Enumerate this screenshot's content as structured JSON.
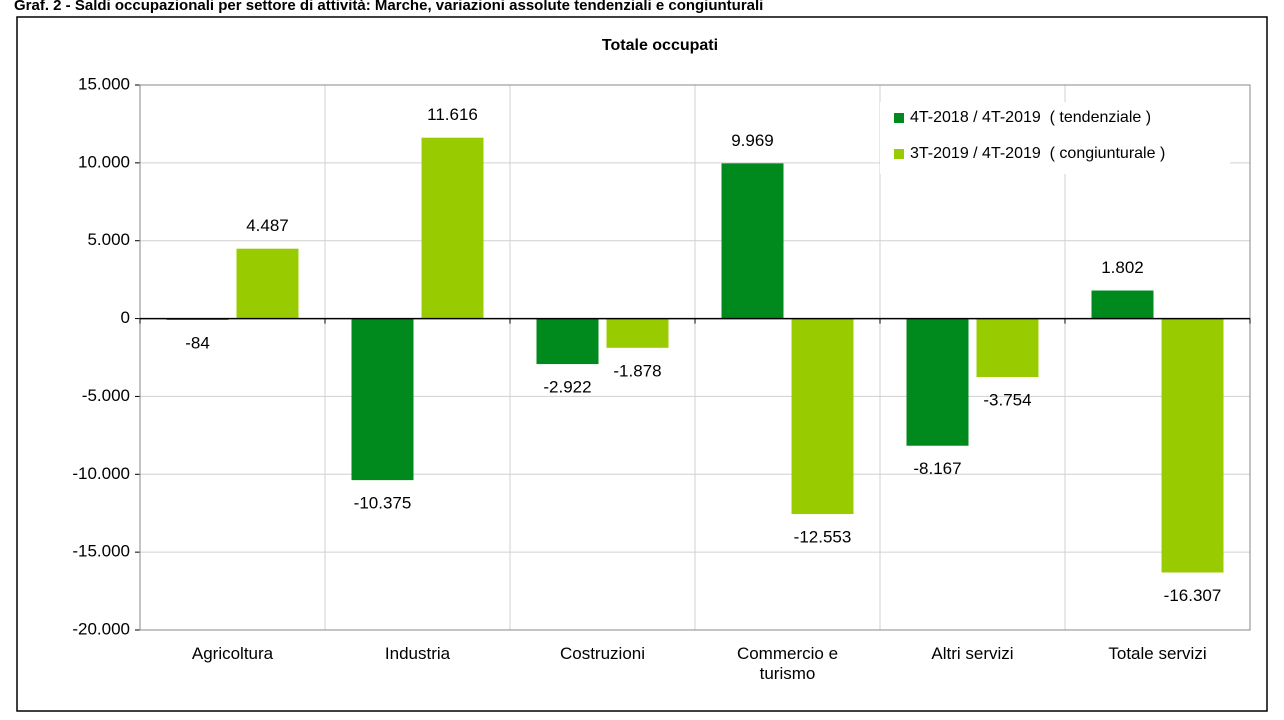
{
  "chart_data": {
    "type": "bar",
    "caption": "Graf. 2 - Saldi occupazionali per settore di attività: Marche, variazioni assolute tendenziali e congiunturali",
    "title": "Totale occupati",
    "categories": [
      "Agricoltura",
      "Industria",
      "Costruzioni",
      "Commercio e turismo",
      "Altri servizi",
      "Totale servizi"
    ],
    "series": [
      {
        "name": "4T-2018 / 4T-2019  ( tendenziale )",
        "color": "#008a1e",
        "values": [
          -84,
          -10375,
          -2922,
          9969,
          -8167,
          1802
        ],
        "value_labels": [
          "-84",
          "-10.375",
          "-2.922",
          "9.969",
          "-8.167",
          "1.802"
        ]
      },
      {
        "name": "3T-2019 / 4T-2019  ( congiunturale )",
        "color": "#99cc00",
        "values": [
          4487,
          11616,
          -1878,
          -12553,
          -3754,
          -16307
        ],
        "value_labels": [
          "4.487",
          "11.616",
          "-1.878",
          "-12.553",
          "-3.754",
          "-16.307"
        ]
      }
    ],
    "ylim": [
      -20000,
      15000
    ],
    "yticks": [
      {
        "value": -20000,
        "label": "-20.000"
      },
      {
        "value": -15000,
        "label": "-15.000"
      },
      {
        "value": -10000,
        "label": "-10.000"
      },
      {
        "value": -5000,
        "label": "-5.000"
      },
      0,
      {
        "value": 5000,
        "label": "5.000"
      },
      {
        "value": 10000,
        "label": "10.000"
      },
      {
        "value": 15000,
        "label": "15.000"
      }
    ],
    "grid": true,
    "legend": "top-right"
  }
}
